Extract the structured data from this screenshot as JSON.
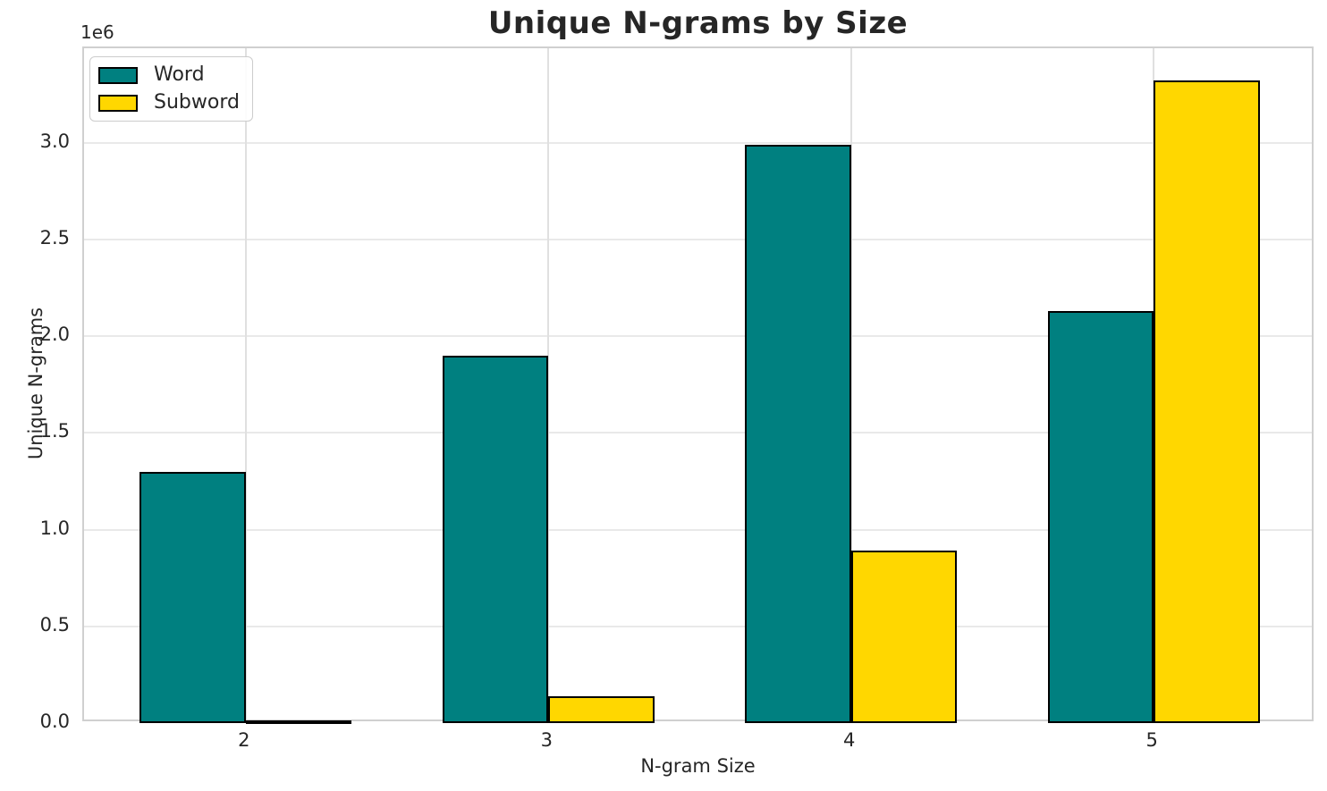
{
  "chart": {
    "title": "Unique N-grams by Size",
    "xlabel": "N-gram Size",
    "ylabel": "Unique N-grams",
    "y_offset_label": "1e6"
  },
  "chart_data": {
    "type": "bar",
    "title": "Unique N-grams by Size",
    "xlabel": "N-gram Size",
    "ylabel": "Unique N-grams",
    "y_axis_offset_label": "1e6",
    "categories": [
      "2",
      "3",
      "4",
      "5"
    ],
    "category_positions": [
      2,
      3,
      4,
      5
    ],
    "series": [
      {
        "name": "Word",
        "color": "#008080",
        "values": [
          1300000,
          1900000,
          2990000,
          2130000
        ]
      },
      {
        "name": "Subword",
        "color": "#FFD700",
        "values": [
          15000,
          140000,
          890000,
          3320000
        ]
      }
    ],
    "bar_width": 0.35,
    "bar_edge_color": "#000000",
    "xlim": [
      1.466,
      5.534
    ],
    "ylim": [
      0,
      3488000
    ],
    "yticks": [
      0,
      500000,
      1000000,
      1500000,
      2000000,
      2500000,
      3000000
    ],
    "ytick_labels": [
      "0.0",
      "0.5",
      "1.0",
      "1.5",
      "2.0",
      "2.5",
      "3.0"
    ],
    "grid": true,
    "legend_position": "upper-left"
  }
}
